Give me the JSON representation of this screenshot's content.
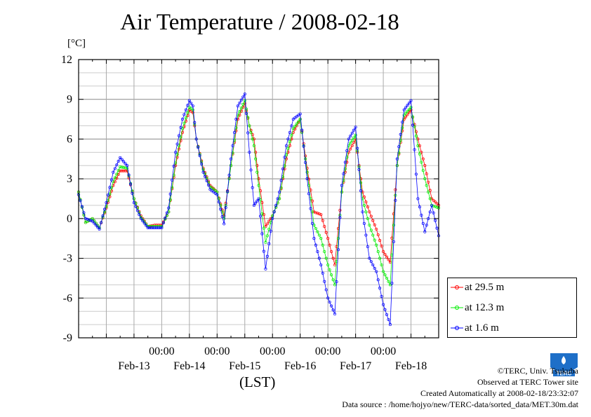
{
  "title": "Air Temperature / 2008-02-18",
  "unit_label": "[°C]",
  "credits": {
    "line1": "©TERC, Univ. Tsukuba",
    "line2": "Observed at TERC Tower site",
    "line3": "Created Automatically at 2008-02-18/23:32:07",
    "line4": "Data source : /home/hojyo/new/TERC-data/sorted_data/MET.30m.dat"
  },
  "logo_text": "TERC",
  "colors": {
    "s1": "#ff0000",
    "s2": "#00ee00",
    "s3": "#0000ff",
    "grid": "#999999",
    "frame": "#000000"
  },
  "chart_data": {
    "type": "line",
    "title": "Air Temperature / 2008-02-18",
    "xlabel": "(LST)",
    "ylabel": "[°C]",
    "ylim": [
      -9,
      12
    ],
    "xlim": [
      "2008-02-12 12:00",
      "2008-02-18 24:00"
    ],
    "yticks": [
      "12",
      "9",
      "6",
      "3",
      "0",
      "-3",
      "-6",
      "-9"
    ],
    "yticks_values": [
      12,
      9,
      6,
      3,
      0,
      -3,
      -6,
      -9
    ],
    "xtick_time_labels": [
      "00:00",
      "00:00",
      "00:00",
      "00:00",
      "00:00"
    ],
    "xtick_times": [
      "2008-02-14 00:00",
      "2008-02-15 00:00",
      "2008-02-16 00:00",
      "2008-02-17 00:00",
      "2008-02-18 00:00"
    ],
    "date_labels": [
      "Feb-13",
      "Feb-14",
      "Feb-15",
      "Feb-16",
      "Feb-17",
      "Feb-18"
    ],
    "date_label_times": [
      "2008-02-13 12:00",
      "2008-02-14 12:00",
      "2008-02-15 12:00",
      "2008-02-16 12:00",
      "2008-02-17 12:00",
      "2008-02-18 12:00"
    ],
    "grid": true,
    "legend_position": "right-bottom outside",
    "series": [
      {
        "name": "at 29.5 m",
        "color": "#ff0000",
        "points": [
          [
            "2008-02-12 12:00",
            2.0
          ],
          [
            "2008-02-12 15:00",
            -0.3
          ],
          [
            "2008-02-12 18:00",
            0.0
          ],
          [
            "2008-02-12 21:00",
            -0.7
          ],
          [
            "2008-02-13 00:00",
            0.8
          ],
          [
            "2008-02-13 03:00",
            2.5
          ],
          [
            "2008-02-13 06:00",
            3.6
          ],
          [
            "2008-02-13 09:00",
            3.6
          ],
          [
            "2008-02-13 12:00",
            1.5
          ],
          [
            "2008-02-13 15:00",
            0.2
          ],
          [
            "2008-02-13 18:00",
            -0.6
          ],
          [
            "2008-02-13 21:00",
            -0.5
          ],
          [
            "2008-02-14 00:00",
            -0.5
          ],
          [
            "2008-02-14 03:00",
            0.5
          ],
          [
            "2008-02-14 06:00",
            4.0
          ],
          [
            "2008-02-14 09:00",
            6.5
          ],
          [
            "2008-02-14 12:00",
            8.2
          ],
          [
            "2008-02-14 13:30",
            8.0
          ],
          [
            "2008-02-14 15:00",
            6.0
          ],
          [
            "2008-02-14 18:00",
            3.8
          ],
          [
            "2008-02-14 21:00",
            2.5
          ],
          [
            "2008-02-15 00:00",
            2.0
          ],
          [
            "2008-02-15 03:00",
            0.2
          ],
          [
            "2008-02-15 06:00",
            4.0
          ],
          [
            "2008-02-15 09:00",
            7.5
          ],
          [
            "2008-02-15 12:00",
            8.7
          ],
          [
            "2008-02-15 14:00",
            7.0
          ],
          [
            "2008-02-15 16:00",
            6.0
          ],
          [
            "2008-02-15 18:00",
            3.0
          ],
          [
            "2008-02-15 21:00",
            -0.6
          ],
          [
            "2008-02-16 00:00",
            0.2
          ],
          [
            "2008-02-16 03:00",
            1.5
          ],
          [
            "2008-02-16 06:00",
            4.5
          ],
          [
            "2008-02-16 09:00",
            6.5
          ],
          [
            "2008-02-16 12:00",
            7.5
          ],
          [
            "2008-02-16 15:00",
            3.8
          ],
          [
            "2008-02-16 18:00",
            0.5
          ],
          [
            "2008-02-16 21:00",
            0.3
          ],
          [
            "2008-02-17 00:00",
            -1.5
          ],
          [
            "2008-02-17 03:00",
            -3.5
          ],
          [
            "2008-02-17 06:00",
            2.0
          ],
          [
            "2008-02-17 09:00",
            5.0
          ],
          [
            "2008-02-17 12:00",
            6.0
          ],
          [
            "2008-02-17 15:00",
            2.0
          ],
          [
            "2008-02-17 18:00",
            0.5
          ],
          [
            "2008-02-17 21:00",
            -0.8
          ],
          [
            "2008-02-18 00:00",
            -2.5
          ],
          [
            "2008-02-18 03:00",
            -3.3
          ],
          [
            "2008-02-18 06:00",
            4.0
          ],
          [
            "2008-02-18 09:00",
            7.5
          ],
          [
            "2008-02-18 12:00",
            8.2
          ],
          [
            "2008-02-18 15:00",
            6.0
          ],
          [
            "2008-02-18 18:00",
            4.0
          ],
          [
            "2008-02-18 21:00",
            1.5
          ],
          [
            "2008-02-18 24:00",
            1.0
          ]
        ]
      },
      {
        "name": "at 12.3 m",
        "color": "#00ee00",
        "points": [
          [
            "2008-02-12 12:00",
            2.0
          ],
          [
            "2008-02-12 15:00",
            -0.3
          ],
          [
            "2008-02-12 18:00",
            0.0
          ],
          [
            "2008-02-12 21:00",
            -0.7
          ],
          [
            "2008-02-13 00:00",
            0.9
          ],
          [
            "2008-02-13 03:00",
            2.8
          ],
          [
            "2008-02-13 06:00",
            3.9
          ],
          [
            "2008-02-13 09:00",
            3.8
          ],
          [
            "2008-02-13 12:00",
            1.5
          ],
          [
            "2008-02-13 15:00",
            0.1
          ],
          [
            "2008-02-13 18:00",
            -0.6
          ],
          [
            "2008-02-13 21:00",
            -0.6
          ],
          [
            "2008-02-14 00:00",
            -0.6
          ],
          [
            "2008-02-14 03:00",
            0.5
          ],
          [
            "2008-02-14 06:00",
            4.2
          ],
          [
            "2008-02-14 09:00",
            6.8
          ],
          [
            "2008-02-14 12:00",
            8.4
          ],
          [
            "2008-02-14 13:30",
            8.2
          ],
          [
            "2008-02-14 15:00",
            6.0
          ],
          [
            "2008-02-14 18:00",
            3.7
          ],
          [
            "2008-02-14 21:00",
            2.4
          ],
          [
            "2008-02-15 00:00",
            2.0
          ],
          [
            "2008-02-15 03:00",
            0.0
          ],
          [
            "2008-02-15 06:00",
            4.0
          ],
          [
            "2008-02-15 09:00",
            7.8
          ],
          [
            "2008-02-15 12:00",
            8.9
          ],
          [
            "2008-02-15 14:00",
            7.0
          ],
          [
            "2008-02-15 16:00",
            5.5
          ],
          [
            "2008-02-15 18:00",
            2.5
          ],
          [
            "2008-02-15 21:00",
            -1.8
          ],
          [
            "2008-02-16 00:00",
            0.2
          ],
          [
            "2008-02-16 03:00",
            1.5
          ],
          [
            "2008-02-16 06:00",
            4.8
          ],
          [
            "2008-02-16 09:00",
            6.8
          ],
          [
            "2008-02-16 12:00",
            7.5
          ],
          [
            "2008-02-16 15:00",
            3.5
          ],
          [
            "2008-02-16 18:00",
            -0.5
          ],
          [
            "2008-02-16 21:00",
            -1.5
          ],
          [
            "2008-02-17 00:00",
            -3.5
          ],
          [
            "2008-02-17 03:00",
            -5.0
          ],
          [
            "2008-02-17 06:00",
            2.0
          ],
          [
            "2008-02-17 09:00",
            5.5
          ],
          [
            "2008-02-17 12:00",
            6.3
          ],
          [
            "2008-02-17 15:00",
            1.5
          ],
          [
            "2008-02-17 18:00",
            -0.5
          ],
          [
            "2008-02-17 21:00",
            -2.0
          ],
          [
            "2008-02-18 00:00",
            -4.0
          ],
          [
            "2008-02-18 03:00",
            -5.0
          ],
          [
            "2008-02-18 06:00",
            4.0
          ],
          [
            "2008-02-18 09:00",
            7.8
          ],
          [
            "2008-02-18 12:00",
            8.4
          ],
          [
            "2008-02-18 15:00",
            5.5
          ],
          [
            "2008-02-18 18:00",
            3.0
          ],
          [
            "2008-02-18 21:00",
            1.0
          ],
          [
            "2008-02-18 24:00",
            0.8
          ]
        ]
      },
      {
        "name": "at 1.6 m",
        "color": "#0000ff",
        "points": [
          [
            "2008-02-12 12:00",
            1.8
          ],
          [
            "2008-02-12 15:00",
            0.0
          ],
          [
            "2008-02-12 18:00",
            -0.2
          ],
          [
            "2008-02-12 21:00",
            -0.8
          ],
          [
            "2008-02-13 00:00",
            1.2
          ],
          [
            "2008-02-13 03:00",
            3.5
          ],
          [
            "2008-02-13 06:00",
            4.6
          ],
          [
            "2008-02-13 09:00",
            4.0
          ],
          [
            "2008-02-13 12:00",
            1.2
          ],
          [
            "2008-02-13 15:00",
            0.0
          ],
          [
            "2008-02-13 18:00",
            -0.7
          ],
          [
            "2008-02-13 21:00",
            -0.7
          ],
          [
            "2008-02-14 00:00",
            -0.7
          ],
          [
            "2008-02-14 03:00",
            0.8
          ],
          [
            "2008-02-14 06:00",
            5.0
          ],
          [
            "2008-02-14 09:00",
            7.5
          ],
          [
            "2008-02-14 12:00",
            8.9
          ],
          [
            "2008-02-14 13:30",
            8.5
          ],
          [
            "2008-02-14 15:00",
            6.0
          ],
          [
            "2008-02-14 18:00",
            3.5
          ],
          [
            "2008-02-14 21:00",
            2.2
          ],
          [
            "2008-02-15 00:00",
            1.8
          ],
          [
            "2008-02-15 03:00",
            -0.4
          ],
          [
            "2008-02-15 06:00",
            4.5
          ],
          [
            "2008-02-15 09:00",
            8.5
          ],
          [
            "2008-02-15 12:00",
            9.4
          ],
          [
            "2008-02-15 14:00",
            5.0
          ],
          [
            "2008-02-15 16:00",
            1.0
          ],
          [
            "2008-02-15 18:00",
            1.5
          ],
          [
            "2008-02-15 21:00",
            -3.8
          ],
          [
            "2008-02-16 00:00",
            0.0
          ],
          [
            "2008-02-16 03:00",
            2.0
          ],
          [
            "2008-02-16 06:00",
            5.5
          ],
          [
            "2008-02-16 09:00",
            7.5
          ],
          [
            "2008-02-16 12:00",
            7.9
          ],
          [
            "2008-02-16 15:00",
            3.0
          ],
          [
            "2008-02-16 18:00",
            -1.5
          ],
          [
            "2008-02-16 21:00",
            -3.5
          ],
          [
            "2008-02-17 00:00",
            -6.0
          ],
          [
            "2008-02-17 03:00",
            -7.2
          ],
          [
            "2008-02-17 06:00",
            2.5
          ],
          [
            "2008-02-17 09:00",
            6.0
          ],
          [
            "2008-02-17 12:00",
            6.9
          ],
          [
            "2008-02-17 15:00",
            0.5
          ],
          [
            "2008-02-17 18:00",
            -3.0
          ],
          [
            "2008-02-17 21:00",
            -4.0
          ],
          [
            "2008-02-18 00:00",
            -6.5
          ],
          [
            "2008-02-18 03:00",
            -8.0
          ],
          [
            "2008-02-18 06:00",
            4.5
          ],
          [
            "2008-02-18 09:00",
            8.2
          ],
          [
            "2008-02-18 12:00",
            8.9
          ],
          [
            "2008-02-18 15:00",
            1.5
          ],
          [
            "2008-02-18 18:00",
            -1.0
          ],
          [
            "2008-02-18 21:00",
            1.0
          ],
          [
            "2008-02-18 24:00",
            -1.3
          ]
        ]
      }
    ]
  }
}
